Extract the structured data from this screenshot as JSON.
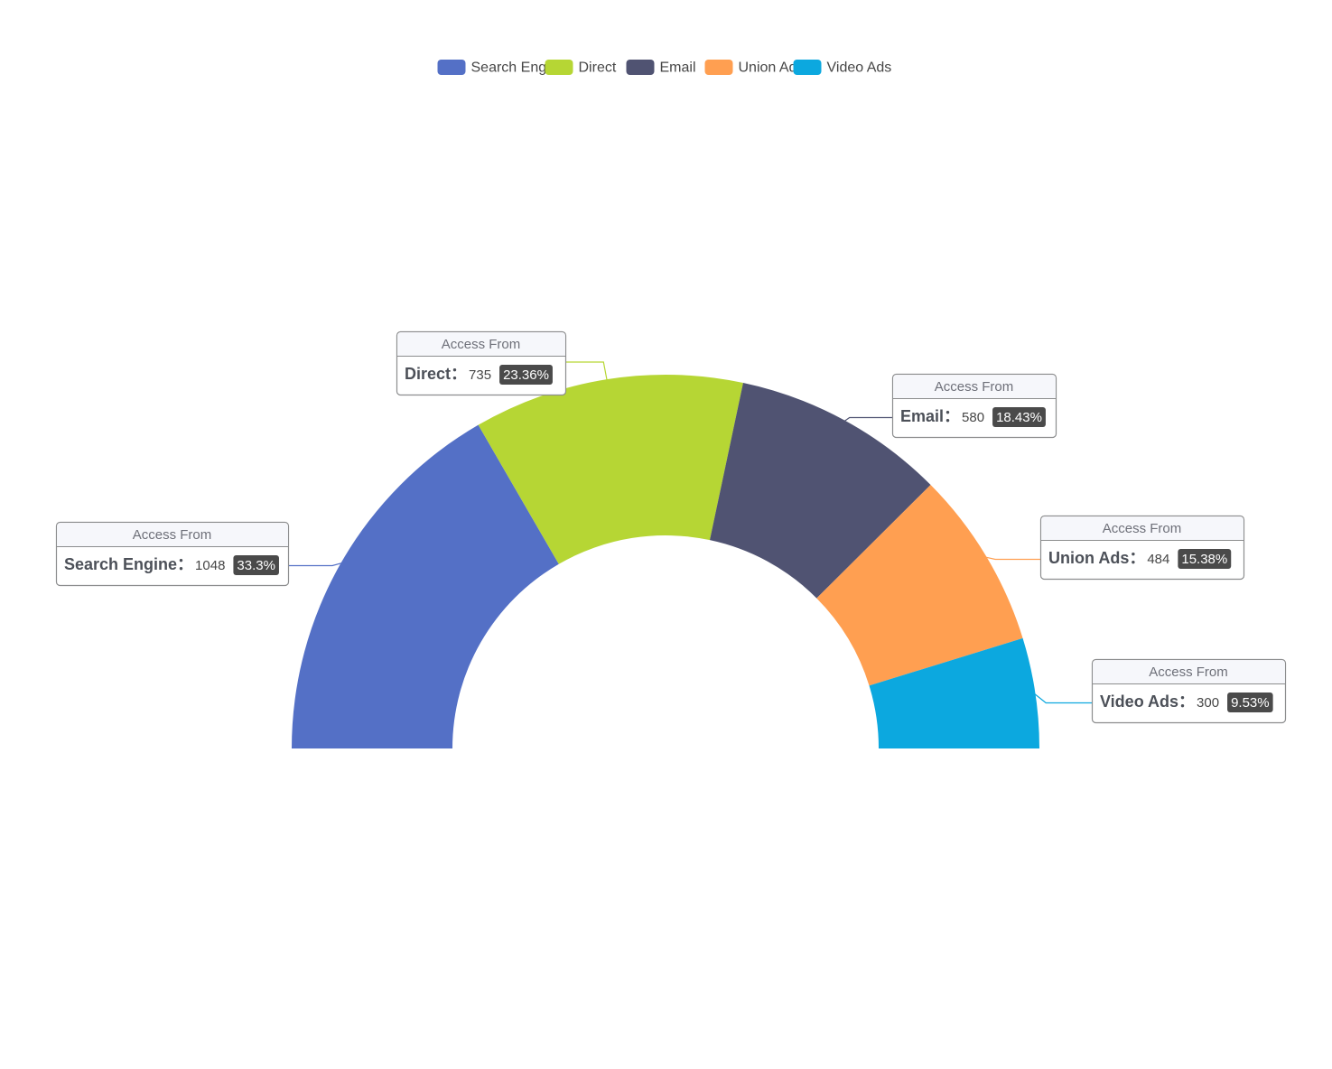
{
  "chart_data": {
    "type": "pie",
    "variant": "half-donut",
    "legend_position": "top-center",
    "label_header": "Access From",
    "categories": [
      "Search Engine",
      "Direct",
      "Email",
      "Union Ads",
      "Video Ads"
    ],
    "values": [
      1048,
      735,
      580,
      484,
      300
    ],
    "percentages": [
      "33.3%",
      "23.36%",
      "18.43%",
      "15.38%",
      "9.53%"
    ],
    "colors": [
      "#5470c6",
      "#b6d634",
      "#505372",
      "#ff9f51",
      "#0ca8df"
    ]
  }
}
